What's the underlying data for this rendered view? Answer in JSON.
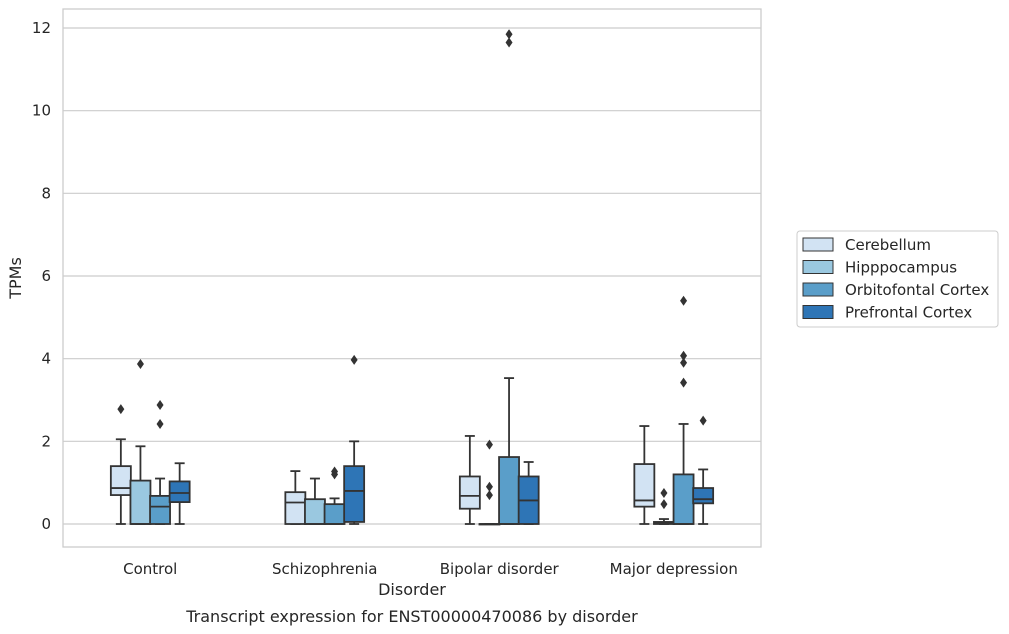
{
  "chart_data": {
    "type": "box",
    "title": "",
    "caption": "Transcript expression for ENST00000470086 by disorder",
    "xlabel": "Disorder",
    "ylabel": "TPMs",
    "ylim": [
      -0.55,
      12.45
    ],
    "yticks": [
      0,
      2,
      4,
      6,
      8,
      10,
      12
    ],
    "grid": "horizontal",
    "legend_position": "right",
    "categories": [
      "Control",
      "Schizophrenia",
      "Bipolar disorder",
      "Major depression"
    ],
    "series": [
      {
        "name": "Cerebellum",
        "color": "#d2e3f3",
        "boxes": [
          {
            "whislo": 0.0,
            "q1": 0.7,
            "med": 0.87,
            "q3": 1.4,
            "whishi": 2.05,
            "fliers": [
              2.78
            ]
          },
          {
            "whislo": 0.0,
            "q1": 0.0,
            "med": 0.52,
            "q3": 0.77,
            "whishi": 1.28,
            "fliers": []
          },
          {
            "whislo": 0.0,
            "q1": 0.37,
            "med": 0.68,
            "q3": 1.15,
            "whishi": 2.13,
            "fliers": []
          },
          {
            "whislo": 0.0,
            "q1": 0.42,
            "med": 0.57,
            "q3": 1.45,
            "whishi": 2.37,
            "fliers": []
          }
        ]
      },
      {
        "name": "Hipppocampus",
        "color": "#9ac8e0",
        "boxes": [
          {
            "whislo": 0.0,
            "q1": 0.0,
            "med": 0.0,
            "q3": 1.05,
            "whishi": 1.88,
            "fliers": [
              3.87
            ]
          },
          {
            "whislo": 0.0,
            "q1": 0.0,
            "med": 0.0,
            "q3": 0.6,
            "whishi": 1.1,
            "fliers": []
          },
          {
            "whislo": 0.0,
            "q1": 0.0,
            "med": 0.0,
            "q3": 0.0,
            "whishi": 0.0,
            "fliers": [
              1.92,
              0.9,
              0.7
            ]
          },
          {
            "whislo": 0.0,
            "q1": 0.0,
            "med": 0.02,
            "q3": 0.05,
            "whishi": 0.12,
            "fliers": [
              0.75,
              0.48
            ]
          }
        ]
      },
      {
        "name": "Orbitofontal Cortex",
        "color": "#5a9ec9",
        "boxes": [
          {
            "whislo": 0.0,
            "q1": 0.0,
            "med": 0.42,
            "q3": 0.68,
            "whishi": 1.1,
            "fliers": [
              2.88,
              2.42
            ]
          },
          {
            "whislo": 0.0,
            "q1": 0.0,
            "med": 0.0,
            "q3": 0.48,
            "whishi": 0.62,
            "fliers": [
              1.27,
              1.2
            ]
          },
          {
            "whislo": 0.0,
            "q1": 0.0,
            "med": 0.0,
            "q3": 1.62,
            "whishi": 3.53,
            "fliers": [
              11.85,
              11.65
            ]
          },
          {
            "whislo": 0.0,
            "q1": 0.0,
            "med": 0.0,
            "q3": 1.2,
            "whishi": 2.42,
            "fliers": [
              5.4,
              4.07,
              3.9,
              3.42
            ]
          }
        ]
      },
      {
        "name": "Prefrontal Cortex",
        "color": "#2e75b6",
        "boxes": [
          {
            "whislo": 0.0,
            "q1": 0.53,
            "med": 0.75,
            "q3": 1.03,
            "whishi": 1.47,
            "fliers": []
          },
          {
            "whislo": 0.0,
            "q1": 0.05,
            "med": 0.8,
            "q3": 1.4,
            "whishi": 2.0,
            "fliers": [
              3.97
            ]
          },
          {
            "whislo": 0.0,
            "q1": 0.0,
            "med": 0.57,
            "q3": 1.15,
            "whishi": 1.5,
            "fliers": []
          },
          {
            "whislo": 0.0,
            "q1": 0.5,
            "med": 0.6,
            "q3": 0.87,
            "whishi": 1.32,
            "fliers": [
              2.5
            ]
          }
        ]
      }
    ]
  },
  "colors": {
    "grid": "#cccccc",
    "frame": "#cccccc",
    "box_edge": "#333333",
    "text": "#262626"
  }
}
